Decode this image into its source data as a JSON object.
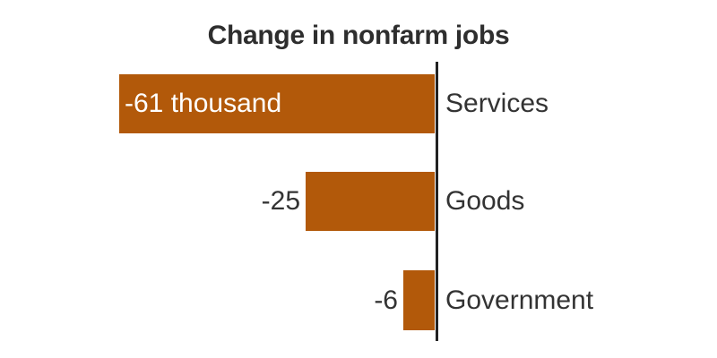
{
  "title": "Change in nonfarm jobs",
  "colors": {
    "bar": "#B2590A",
    "axis": "#222222",
    "title_text": "#2e2e2e",
    "category_text": "#333333",
    "value_outside_text": "#333333",
    "value_inside_text": "#ffffff",
    "background": "#ffffff"
  },
  "chart_data": {
    "type": "bar",
    "orientation": "horizontal",
    "title": "Change in nonfarm jobs",
    "unit": "thousand",
    "categories": [
      "Services",
      "Goods",
      "Government"
    ],
    "values": [
      -61,
      -25,
      -6
    ],
    "value_labels": [
      "-61 thousand",
      "-25",
      "-6"
    ],
    "value_label_position": [
      "inside-left",
      "outside-left",
      "outside-left"
    ],
    "xlabel": "",
    "ylabel": "",
    "xlim": [
      -61,
      0
    ],
    "baseline_at_zero": true,
    "grid": false,
    "legend": "none",
    "category_label_side": "right-of-baseline"
  }
}
